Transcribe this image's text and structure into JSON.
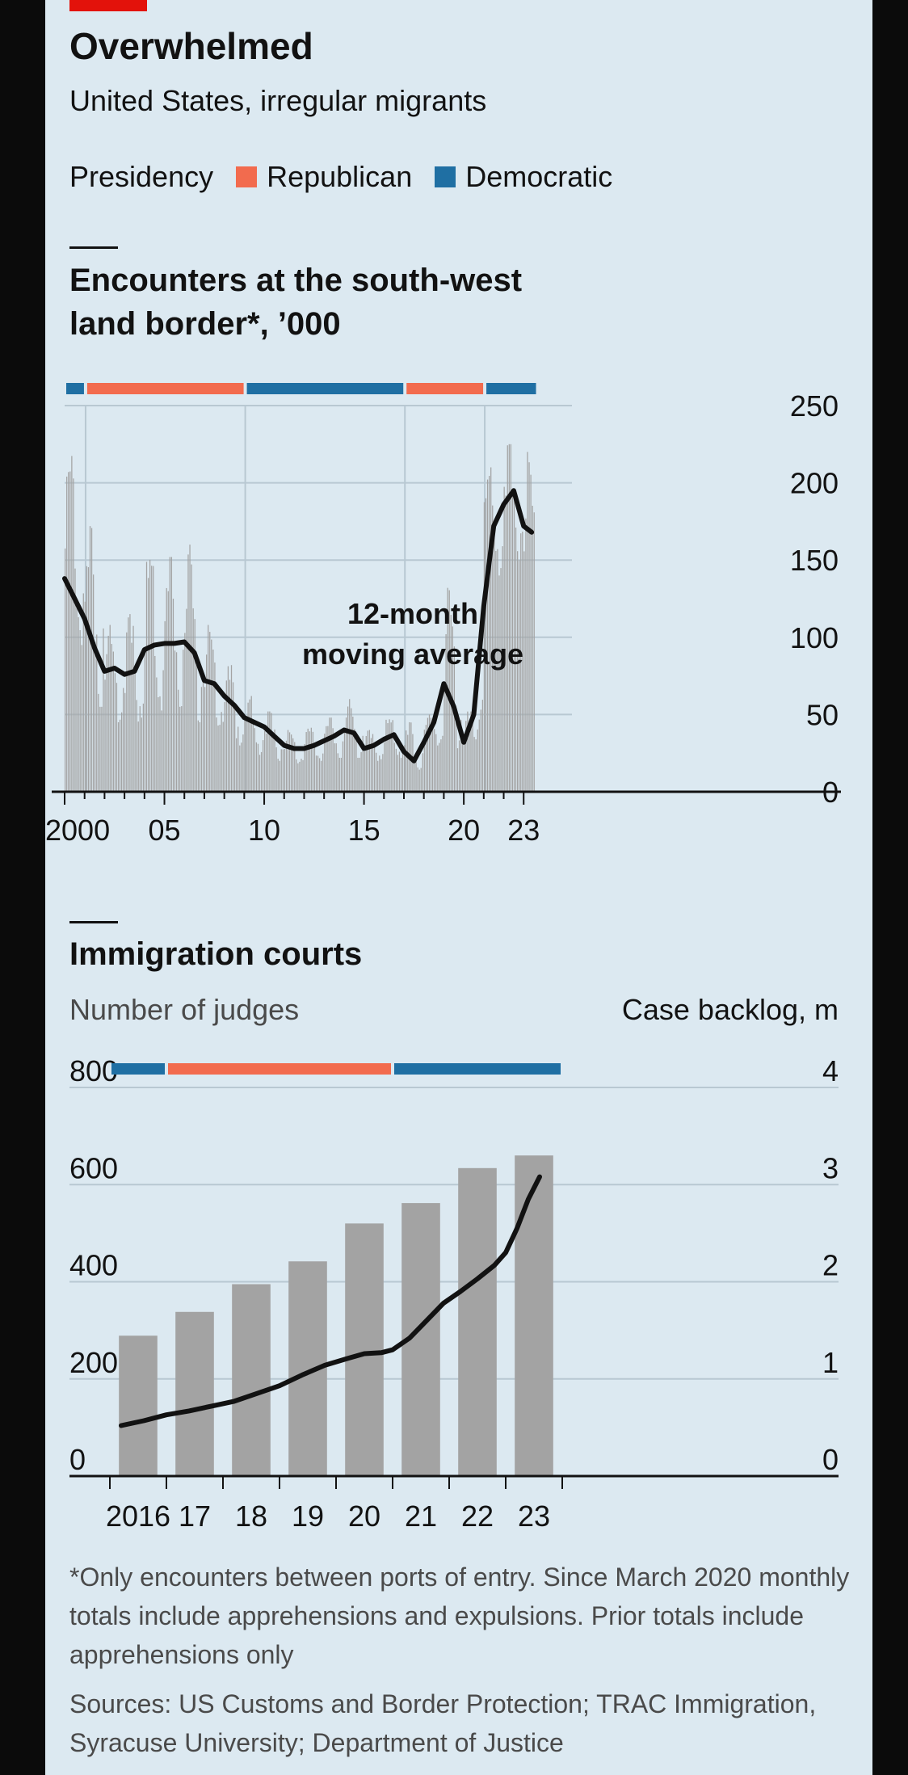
{
  "header": {
    "title": "Overwhelmed",
    "subtitle": "United States, irregular migrants",
    "legend": {
      "label": "Presidency",
      "items": [
        {
          "label": "Republican",
          "color": "#f26b4e"
        },
        {
          "label": "Democratic",
          "color": "#1f6fa3"
        }
      ]
    }
  },
  "chart1": {
    "title_line1": "Encounters at the south-west",
    "title_line2": "land border*, ’000",
    "annotation_line1": "12-month",
    "annotation_line2": "moving average"
  },
  "chart2": {
    "title": "Immigration courts",
    "left_axis_label": "Number of judges",
    "right_axis_label": "Case backlog, m"
  },
  "footnote": "*Only encounters between ports of entry. Since March 2020 monthly totals include apprehensions and expulsions. Prior totals include apprehensions only",
  "sources": "Sources: US Customs and Border Protection; TRAC Immigration, Syracuse University; Department of Justice",
  "chart_data": [
    {
      "type": "bar",
      "title": "Encounters at the south-west land border*, ’000",
      "x_ticks": [
        "2000",
        "05",
        "10",
        "15",
        "20",
        "23"
      ],
      "y_ticks": [
        0,
        50,
        100,
        150,
        200,
        250
      ],
      "ylim": [
        0,
        250
      ],
      "xlim": [
        2000,
        2023.8
      ],
      "axis_side": "right",
      "grid": true,
      "presidency_bands": [
        {
          "party": "Democratic",
          "start": 2000.0,
          "end": 2001.05
        },
        {
          "party": "Republican",
          "start": 2001.05,
          "end": 2009.05
        },
        {
          "party": "Democratic",
          "start": 2009.05,
          "end": 2017.05
        },
        {
          "party": "Republican",
          "start": 2017.05,
          "end": 2021.05
        },
        {
          "party": "Democratic",
          "start": 2021.05,
          "end": 2023.7
        }
      ],
      "monthly_series": {
        "name": "Monthly encounters",
        "color": "#a3a3a3",
        "annual_peak": [
          [
            2000,
            220
          ],
          [
            2001,
            172
          ],
          [
            2002,
            108
          ],
          [
            2003,
            115
          ],
          [
            2004,
            155
          ],
          [
            2005,
            152
          ],
          [
            2006,
            160
          ],
          [
            2007,
            108
          ],
          [
            2008,
            82
          ],
          [
            2009,
            62
          ],
          [
            2010,
            52
          ],
          [
            2011,
            40
          ],
          [
            2012,
            42
          ],
          [
            2013,
            48
          ],
          [
            2014,
            60
          ],
          [
            2015,
            40
          ],
          [
            2016,
            48
          ],
          [
            2017,
            45
          ],
          [
            2018,
            50
          ],
          [
            2019,
            132
          ],
          [
            2020,
            52
          ],
          [
            2021,
            210
          ],
          [
            2022,
            225
          ],
          [
            2023,
            220
          ]
        ],
        "annual_trough": [
          [
            2000,
            95
          ],
          [
            2001,
            55
          ],
          [
            2002,
            45
          ],
          [
            2003,
            42
          ],
          [
            2004,
            50
          ],
          [
            2005,
            55
          ],
          [
            2006,
            45
          ],
          [
            2007,
            40
          ],
          [
            2008,
            30
          ],
          [
            2009,
            22
          ],
          [
            2010,
            20
          ],
          [
            2011,
            18
          ],
          [
            2012,
            20
          ],
          [
            2013,
            22
          ],
          [
            2014,
            22
          ],
          [
            2015,
            20
          ],
          [
            2016,
            22
          ],
          [
            2017,
            12
          ],
          [
            2018,
            30
          ],
          [
            2019,
            28
          ],
          [
            2020,
            18
          ],
          [
            2021,
            140
          ],
          [
            2022,
            150
          ],
          [
            2023,
            100
          ]
        ]
      },
      "moving_average": {
        "name": "12-month moving average",
        "points": [
          [
            2000.0,
            138
          ],
          [
            2000.5,
            125
          ],
          [
            2001.0,
            112
          ],
          [
            2001.5,
            93
          ],
          [
            2002.0,
            78
          ],
          [
            2002.5,
            80
          ],
          [
            2003.0,
            76
          ],
          [
            2003.5,
            78
          ],
          [
            2004.0,
            92
          ],
          [
            2004.5,
            95
          ],
          [
            2005.0,
            96
          ],
          [
            2005.5,
            96
          ],
          [
            2006.0,
            97
          ],
          [
            2006.5,
            90
          ],
          [
            2007.0,
            72
          ],
          [
            2007.5,
            70
          ],
          [
            2008.0,
            62
          ],
          [
            2008.5,
            56
          ],
          [
            2009.0,
            48
          ],
          [
            2009.5,
            45
          ],
          [
            2010.0,
            42
          ],
          [
            2010.5,
            36
          ],
          [
            2011.0,
            30
          ],
          [
            2011.5,
            28
          ],
          [
            2012.0,
            28
          ],
          [
            2012.5,
            30
          ],
          [
            2013.0,
            33
          ],
          [
            2013.5,
            36
          ],
          [
            2014.0,
            40
          ],
          [
            2014.5,
            38
          ],
          [
            2015.0,
            28
          ],
          [
            2015.5,
            30
          ],
          [
            2016.0,
            34
          ],
          [
            2016.5,
            37
          ],
          [
            2017.0,
            26
          ],
          [
            2017.5,
            20
          ],
          [
            2018.0,
            32
          ],
          [
            2018.5,
            45
          ],
          [
            2019.0,
            70
          ],
          [
            2019.5,
            55
          ],
          [
            2020.0,
            32
          ],
          [
            2020.5,
            50
          ],
          [
            2021.0,
            120
          ],
          [
            2021.5,
            172
          ],
          [
            2022.0,
            186
          ],
          [
            2022.5,
            195
          ],
          [
            2023.0,
            172
          ],
          [
            2023.4,
            168
          ]
        ]
      }
    },
    {
      "type": "bar",
      "title": "Immigration courts",
      "categories": [
        "2016",
        "17",
        "18",
        "19",
        "20",
        "21",
        "22",
        "23"
      ],
      "left_axis": {
        "label": "Number of judges",
        "ticks": [
          0,
          200,
          400,
          600,
          800
        ],
        "lim": [
          0,
          800
        ]
      },
      "right_axis": {
        "label": "Case backlog, m",
        "ticks": [
          0,
          1,
          2,
          3,
          4
        ],
        "lim": [
          0,
          4
        ]
      },
      "grid": true,
      "presidency_bands": [
        {
          "party": "Democratic",
          "start": 0,
          "end": 1
        },
        {
          "party": "Republican",
          "start": 1,
          "end": 5
        },
        {
          "party": "Democratic",
          "start": 5,
          "end": 8
        }
      ],
      "series": [
        {
          "name": "Number of judges",
          "kind": "bar",
          "axis": "left",
          "color": "#a3a3a3",
          "values": [
            289,
            338,
            395,
            442,
            520,
            562,
            634,
            660
          ]
        },
        {
          "name": "Case backlog, m",
          "kind": "line",
          "axis": "right",
          "color": "#121212",
          "points": [
            [
              0.2,
              0.52
            ],
            [
              0.6,
              0.57
            ],
            [
              1.0,
              0.63
            ],
            [
              1.4,
              0.67
            ],
            [
              1.8,
              0.72
            ],
            [
              2.2,
              0.77
            ],
            [
              2.6,
              0.85
            ],
            [
              3.0,
              0.93
            ],
            [
              3.4,
              1.04
            ],
            [
              3.8,
              1.14
            ],
            [
              4.2,
              1.21
            ],
            [
              4.5,
              1.26
            ],
            [
              4.8,
              1.27
            ],
            [
              5.0,
              1.3
            ],
            [
              5.3,
              1.42
            ],
            [
              5.6,
              1.6
            ],
            [
              5.9,
              1.78
            ],
            [
              6.2,
              1.9
            ],
            [
              6.5,
              2.03
            ],
            [
              6.8,
              2.17
            ],
            [
              7.0,
              2.3
            ],
            [
              7.2,
              2.55
            ],
            [
              7.4,
              2.85
            ],
            [
              7.6,
              3.08
            ]
          ]
        }
      ]
    }
  ]
}
